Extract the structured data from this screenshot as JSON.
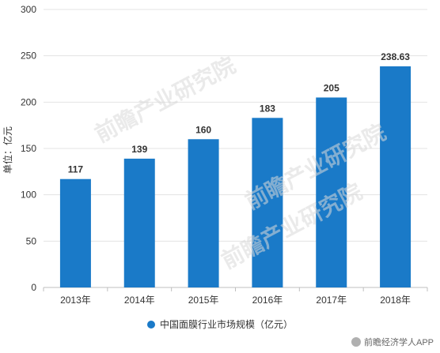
{
  "chart_data": {
    "type": "bar",
    "categories": [
      "2013年",
      "2014年",
      "2015年",
      "2016年",
      "2017年",
      "2018年"
    ],
    "series": [
      {
        "name": "中国面膜行业市场规模（亿元）",
        "values": [
          117,
          139,
          160,
          183,
          205,
          238.63
        ]
      }
    ],
    "data_labels": [
      "117",
      "139",
      "160",
      "183",
      "205",
      "238.63"
    ],
    "ylabel": "单位：亿元",
    "ylim": [
      0,
      300
    ],
    "yticks": [
      0,
      50,
      100,
      150,
      200,
      250,
      300
    ],
    "grid": true,
    "legend_position": "bottom",
    "bar_color": "#1a7ac8"
  },
  "watermark": "前瞻产业研究院",
  "source": "前瞻经济学人APP"
}
